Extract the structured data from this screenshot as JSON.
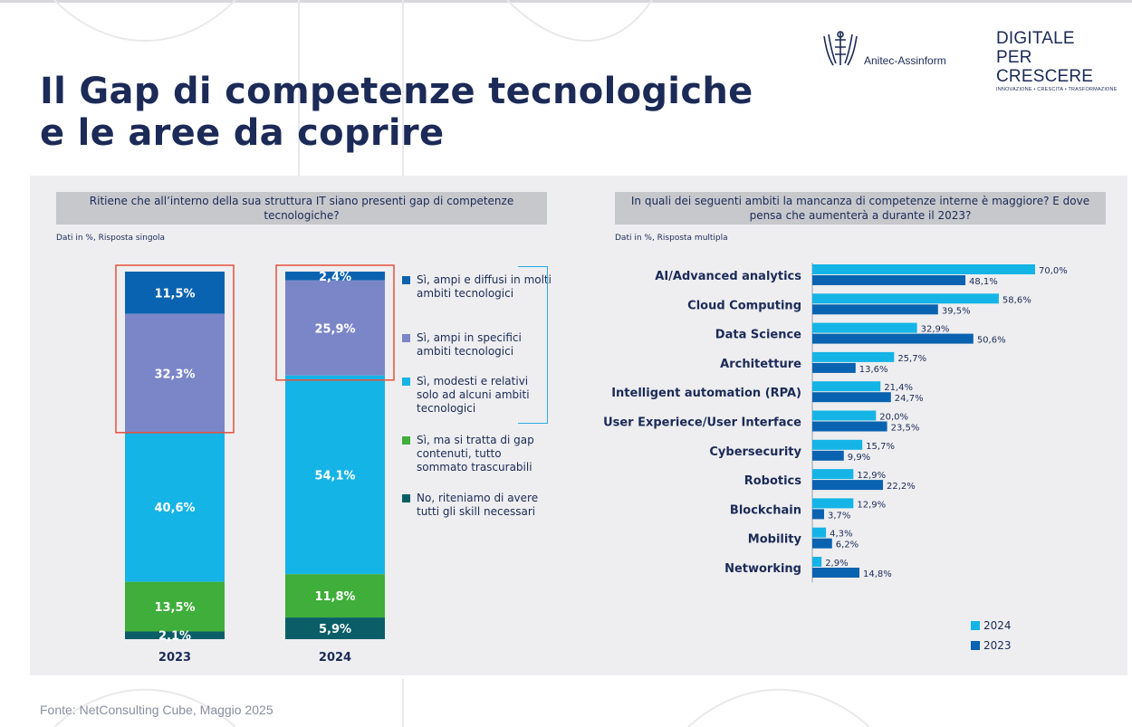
{
  "title_lines": [
    "Il Gap di competenze tecnologiche",
    "e le aree da coprire"
  ],
  "logos": {
    "anitec": "Anitec-Assinform",
    "digitale_line1": "DIGITALE",
    "digitale_line2": "PER CRESCERE",
    "digitale_line3": "INNOVAZIONE • CRESCITA • TRASFORMAZIONE"
  },
  "left_panel": {
    "question": "Ritiene che all’interno della sua struttura IT siano presenti gap di competenze tecnologiche?",
    "note": "Dati in %, Risposta singola",
    "legend": [
      {
        "label": "Sì, ampi e diffusi in molti ambiti tecnologici",
        "color": "#0a63b0"
      },
      {
        "label": "Sì, ampi in specifici ambiti tecnologici",
        "color": "#7b86c8"
      },
      {
        "label": "Sì, modesti e relativi solo ad alcuni ambiti tecnologici",
        "color": "#15b4e6"
      },
      {
        "label": "Sì, ma si tratta di gap contenuti, tutto sommato trascurabili",
        "color": "#3fae3a"
      },
      {
        "label": "No, riteniamo di avere tutti gli skill necessari",
        "color": "#0b5e67"
      }
    ]
  },
  "right_panel": {
    "question": "In quali dei seguenti ambiti la mancanza di competenze interne è maggiore? E dove pensa che aumenterà a durante il 2023?",
    "note": "Dati in %, Risposta multipla",
    "legend_2024": "2024",
    "legend_2023": "2023"
  },
  "source": "Fonte: NetConsulting Cube, Maggio 2025",
  "chart_data": [
    {
      "type": "bar",
      "stacked": true,
      "categories": [
        "2023",
        "2024"
      ],
      "series": [
        {
          "name": "Sì, ampi e diffusi in molti ambiti tecnologici",
          "values": [
            11.5,
            2.4
          ],
          "labels": [
            "11,5%",
            "2,4%"
          ],
          "color": "#0a63b0"
        },
        {
          "name": "Sì, ampi in specifici ambiti tecnologici",
          "values": [
            32.3,
            25.9
          ],
          "labels": [
            "32,3%",
            "25,9%"
          ],
          "color": "#7b86c8"
        },
        {
          "name": "Sì, modesti e relativi solo ad alcuni ambiti tecnologici",
          "values": [
            40.6,
            54.1
          ],
          "labels": [
            "40,6%",
            "54,1%"
          ],
          "color": "#15b4e6"
        },
        {
          "name": "Sì, ma si tratta di gap contenuti, tutto sommato trascurabili",
          "values": [
            13.5,
            11.8
          ],
          "labels": [
            "13,5%",
            "11,8%"
          ],
          "color": "#3fae3a"
        },
        {
          "name": "No, riteniamo di avere tutti gli skill necessari",
          "values": [
            2.1,
            5.9
          ],
          "labels": [
            "2,1%",
            "5,9%"
          ],
          "color": "#0b5e67"
        }
      ]
    },
    {
      "type": "bar",
      "orientation": "horizontal",
      "categories": [
        "AI/Advanced analytics",
        "Cloud Computing",
        "Data Science",
        "Architetture",
        "Intelligent automation (RPA)",
        "User Experiece/User Interface",
        "Cybersecurity",
        "Robotics",
        "Blockchain",
        "Mobility",
        "Networking"
      ],
      "series": [
        {
          "name": "2024",
          "color": "#15b4e6",
          "values": [
            70.0,
            58.6,
            32.9,
            25.7,
            21.4,
            20.0,
            15.7,
            12.9,
            12.9,
            4.3,
            2.9
          ],
          "labels": [
            "70,0%",
            "58,6%",
            "32,9%",
            "25,7%",
            "21,4%",
            "20,0%",
            "15,7%",
            "12,9%",
            "12,9%",
            "4,3%",
            "2,9%"
          ]
        },
        {
          "name": "2023",
          "color": "#0a63b0",
          "values": [
            48.1,
            39.5,
            50.6,
            13.6,
            24.7,
            23.5,
            9.9,
            22.2,
            3.7,
            6.2,
            14.8
          ],
          "labels": [
            "48,1%",
            "39,5%",
            "50,6%",
            "13,6%",
            "24,7%",
            "23,5%",
            "9,9%",
            "22,2%",
            "3,7%",
            "6,2%",
            "14,8%"
          ]
        }
      ]
    }
  ]
}
